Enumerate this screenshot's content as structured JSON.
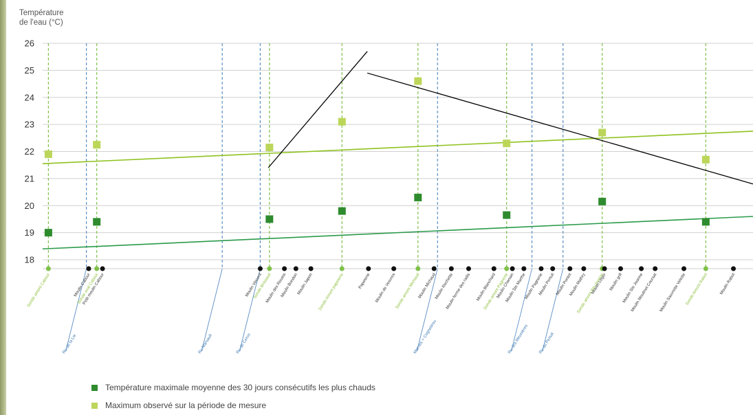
{
  "chart_data": {
    "type": "scatter",
    "title": "",
    "ylabel_line1": "Température",
    "ylabel_line2": "de l'eau (°C)",
    "ylim": [
      18,
      26
    ],
    "yticks": [
      18,
      19,
      20,
      21,
      22,
      23,
      24,
      25,
      26
    ],
    "grid": true,
    "legend_position": "bottom-left",
    "colors": {
      "avg30": "#2e8b2e",
      "max": "#bcd65a",
      "probe_line": "#7fc04a",
      "trib_line": "#5b8ec4",
      "trib_label": "#3d78b2",
      "mill_label": "#333333"
    },
    "series": [
      {
        "name": "Température maximale moyenne des 30 jours consécutifs les plus chauds",
        "x": [
          5,
          47,
          197,
          260,
          326,
          403,
          486,
          576
        ],
        "values": [
          19.0,
          19.4,
          19.5,
          19.8,
          20.3,
          19.65,
          20.15,
          19.4
        ]
      },
      {
        "name": "Maximum observé sur la période de mesure",
        "x": [
          5,
          47,
          197,
          260,
          326,
          403,
          486,
          576
        ],
        "values": [
          21.9,
          22.25,
          22.15,
          23.1,
          24.6,
          22.3,
          22.7,
          21.7
        ]
      }
    ],
    "trend_max": {
      "x": [
        0,
        617
      ],
      "y": [
        21.55,
        22.75
      ]
    },
    "trend_avg": {
      "x": [
        0,
        617
      ],
      "y": [
        18.4,
        19.6
      ]
    },
    "extra_lines": [
      {
        "x": [
          196,
          282
        ],
        "y": [
          21.4,
          25.7
        ]
      },
      {
        "x": [
          282,
          617
        ],
        "y": [
          24.9,
          20.8
        ]
      }
    ],
    "x_domain": [
      0,
      617
    ],
    "probes": [
      {
        "x": 5,
        "label": "Sonde amont Cabour"
      },
      {
        "x": 47,
        "label": "Sonde aval Cabour"
      },
      {
        "x": 197,
        "label": "Sonde Brissaud"
      },
      {
        "x": 260,
        "label": "Sonde Amont papeterie"
      },
      {
        "x": 326,
        "label": "Sonde amont Michaud"
      },
      {
        "x": 403,
        "label": "Sonde amont Pagnerie"
      },
      {
        "x": 486,
        "label": "Sonde amont Ste Jeanne"
      },
      {
        "x": 576,
        "label": "Sonde Amont Rabot"
      }
    ],
    "tributaries": [
      {
        "x": 38,
        "label": "Ru de la Lie"
      },
      {
        "x": 156,
        "label": "Ru Marsault"
      },
      {
        "x": 189,
        "label": "Ru de Cerce"
      },
      {
        "x": 343,
        "label": "Marnes + Cognebrou"
      },
      {
        "x": 425,
        "label": "Ru des Meunières"
      },
      {
        "x": 452,
        "label": "Ru du Pertuit"
      }
    ],
    "mills": [
      {
        "x": 40,
        "label": "Moulin Cabour"
      },
      {
        "x": 52,
        "label": "Petit moulin Cabour"
      },
      {
        "x": 189,
        "label": "Moulin Vincent"
      },
      {
        "x": 210,
        "label": "Moulin des Rouets"
      },
      {
        "x": 220,
        "label": "Moulin Bondon"
      },
      {
        "x": 233,
        "label": "Moulin Japon"
      },
      {
        "x": 283,
        "label": "Papeterie"
      },
      {
        "x": 305,
        "label": "Moulin de Vesvres"
      },
      {
        "x": 340,
        "label": "Moulin Michaud"
      },
      {
        "x": 355,
        "label": "Moulin Rochette"
      },
      {
        "x": 370,
        "label": "Moulin ferme des radis"
      },
      {
        "x": 392,
        "label": "Moulin Blanchard"
      },
      {
        "x": 408,
        "label": "Moulin Chanoin"
      },
      {
        "x": 418,
        "label": "Moulin Ste Marthe"
      },
      {
        "x": 433,
        "label": "Moulin Pagnerie"
      },
      {
        "x": 443,
        "label": "Moulin Pertuit"
      },
      {
        "x": 458,
        "label": "Moulin Pontot"
      },
      {
        "x": 470,
        "label": "Moulin Mathry"
      },
      {
        "x": 488,
        "label": "Moulin Léger"
      },
      {
        "x": 502,
        "label": "Moulin grill"
      },
      {
        "x": 520,
        "label": "Moulin Ste Jeanne"
      },
      {
        "x": 532,
        "label": "Moulin Moulinot Coursat"
      },
      {
        "x": 557,
        "label": "Moulin Sauvrette Velette"
      },
      {
        "x": 600,
        "label": "Moulin Rabot"
      }
    ]
  }
}
